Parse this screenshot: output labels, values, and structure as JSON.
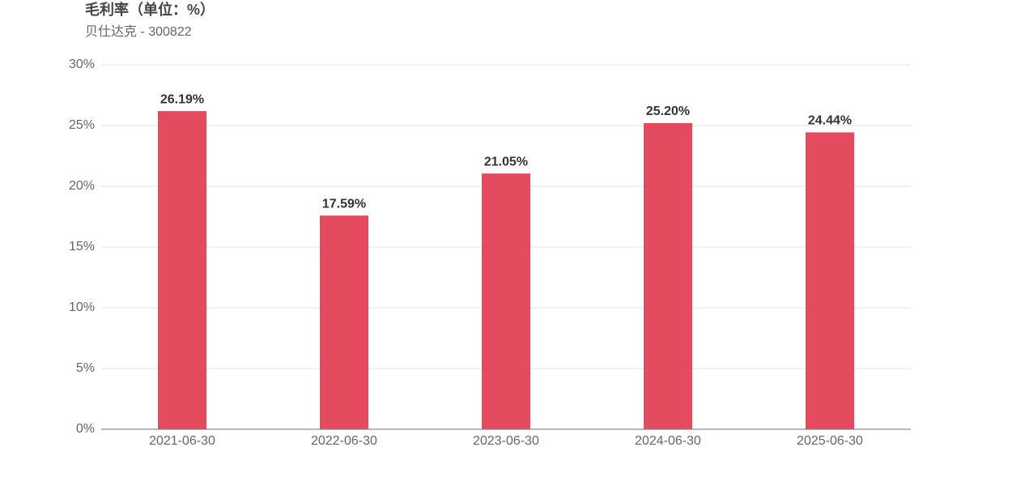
{
  "chart_data": {
    "type": "bar",
    "title": "毛利率（单位：%）",
    "subtitle": "贝仕达克 - 300822",
    "categories": [
      "2021-06-30",
      "2022-06-30",
      "2023-06-30",
      "2024-06-30",
      "2025-06-30"
    ],
    "values": [
      26.19,
      17.59,
      21.05,
      25.2,
      24.44
    ],
    "value_labels": [
      "26.19%",
      "17.59%",
      "21.05%",
      "25.20%",
      "24.44%"
    ],
    "color": "#e54b5e",
    "ylim": [
      0,
      30
    ],
    "yticks": [
      {
        "value": 0,
        "label": "0%"
      },
      {
        "value": 5,
        "label": "5%"
      },
      {
        "value": 10,
        "label": "10%"
      },
      {
        "value": 15,
        "label": "15%"
      },
      {
        "value": 20,
        "label": "20%"
      },
      {
        "value": 25,
        "label": "25%"
      },
      {
        "value": 30,
        "label": "30%"
      }
    ],
    "grid": true
  }
}
